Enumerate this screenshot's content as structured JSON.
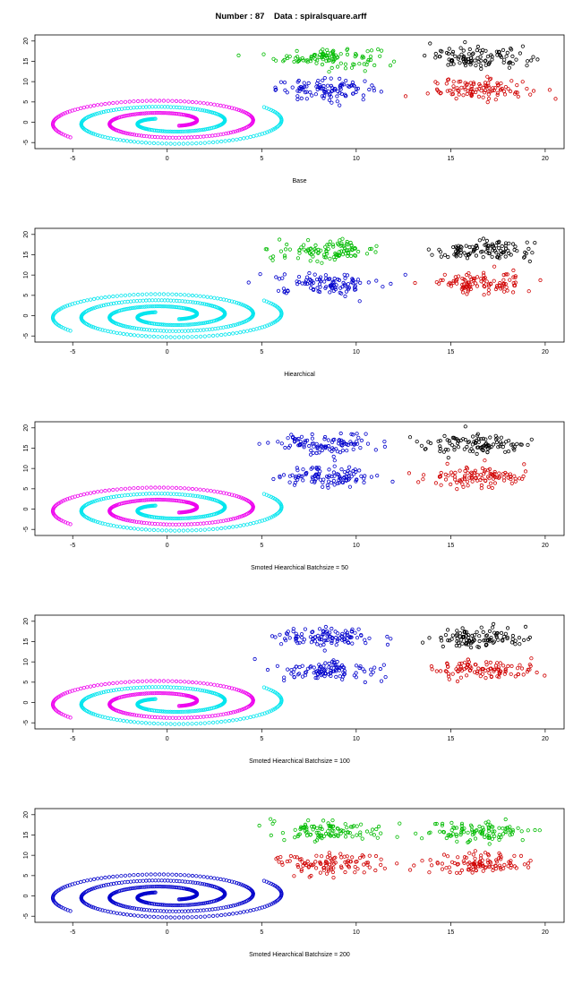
{
  "figure": {
    "title_left": "Number : 87",
    "title_right": "Data : spiralsquare.arff"
  },
  "colors": {
    "black": "#000000",
    "red": "#d00000",
    "green": "#00bb00",
    "blue": "#0000cc",
    "cyan": "#00e5ee",
    "magenta": "#ee00ee"
  },
  "chart_data": [
    {
      "type": "scatter",
      "xlabel": "Base",
      "xlim": [
        -7,
        21
      ],
      "ylim": [
        -6.5,
        21.5
      ],
      "xticks": [
        -5,
        0,
        5,
        10,
        15,
        20
      ],
      "yticks": [
        -5,
        0,
        5,
        10,
        15,
        20
      ],
      "spiral": [
        {
          "arm": "inner",
          "color": "magenta"
        },
        {
          "arm": "outer",
          "color": "cyan"
        }
      ],
      "clusters": [
        {
          "center": [
            8.5,
            16
          ],
          "color": "green"
        },
        {
          "center": [
            8.5,
            8
          ],
          "color": "blue"
        },
        {
          "center": [
            16.5,
            16
          ],
          "color": "black"
        },
        {
          "center": [
            16.5,
            8
          ],
          "color": "red"
        }
      ]
    },
    {
      "type": "scatter",
      "xlabel": "Hiearchical",
      "xlim": [
        -7,
        21
      ],
      "ylim": [
        -6.5,
        21.5
      ],
      "xticks": [
        -5,
        0,
        5,
        10,
        15,
        20
      ],
      "yticks": [
        -5,
        0,
        5,
        10,
        15,
        20
      ],
      "spiral": [
        {
          "arm": "inner",
          "color": "cyan"
        },
        {
          "arm": "outer",
          "color": "cyan"
        }
      ],
      "clusters": [
        {
          "center": [
            8.5,
            16
          ],
          "color": "green"
        },
        {
          "center": [
            8.5,
            8
          ],
          "color": "blue"
        },
        {
          "center": [
            16.5,
            16
          ],
          "color": "black"
        },
        {
          "center": [
            16.5,
            8
          ],
          "color": "red"
        }
      ]
    },
    {
      "type": "scatter",
      "xlabel": "Smoted Hiearchical Batchsize =  50",
      "xlim": [
        -7,
        21
      ],
      "ylim": [
        -6.5,
        21.5
      ],
      "xticks": [
        -5,
        0,
        5,
        10,
        15,
        20
      ],
      "yticks": [
        -5,
        0,
        5,
        10,
        15,
        20
      ],
      "spiral": [
        {
          "arm": "inner",
          "color": "magenta"
        },
        {
          "arm": "outer",
          "color": "cyan"
        }
      ],
      "clusters": [
        {
          "center": [
            8.5,
            16
          ],
          "color": "blue"
        },
        {
          "center": [
            8.5,
            8
          ],
          "color": "blue"
        },
        {
          "center": [
            16.5,
            16
          ],
          "color": "black"
        },
        {
          "center": [
            16.5,
            8
          ],
          "color": "red"
        }
      ]
    },
    {
      "type": "scatter",
      "xlabel": "Smoted Hiearchical Batchsize =  100",
      "xlim": [
        -7,
        21
      ],
      "ylim": [
        -6.5,
        21.5
      ],
      "xticks": [
        -5,
        0,
        5,
        10,
        15,
        20
      ],
      "yticks": [
        -5,
        0,
        5,
        10,
        15,
        20
      ],
      "spiral": [
        {
          "arm": "inner",
          "color": "magenta"
        },
        {
          "arm": "outer",
          "color": "cyan"
        }
      ],
      "clusters": [
        {
          "center": [
            8.5,
            16
          ],
          "color": "blue"
        },
        {
          "center": [
            8.5,
            8
          ],
          "color": "blue"
        },
        {
          "center": [
            16.5,
            16
          ],
          "color": "black"
        },
        {
          "center": [
            16.5,
            8
          ],
          "color": "red"
        }
      ]
    },
    {
      "type": "scatter",
      "xlabel": "Smoted Hiearchical Batchsize =  200",
      "xlim": [
        -7,
        21
      ],
      "ylim": [
        -6.5,
        21.5
      ],
      "xticks": [
        -5,
        0,
        5,
        10,
        15,
        20
      ],
      "yticks": [
        -5,
        0,
        5,
        10,
        15,
        20
      ],
      "spiral": [
        {
          "arm": "inner",
          "color": "blue"
        },
        {
          "arm": "outer",
          "color": "blue"
        }
      ],
      "clusters": [
        {
          "center": [
            8.5,
            16
          ],
          "color": "green"
        },
        {
          "center": [
            8.5,
            8
          ],
          "color": "red"
        },
        {
          "center": [
            16.5,
            16
          ],
          "color": "green"
        },
        {
          "center": [
            16.5,
            8
          ],
          "color": "red"
        }
      ]
    }
  ]
}
